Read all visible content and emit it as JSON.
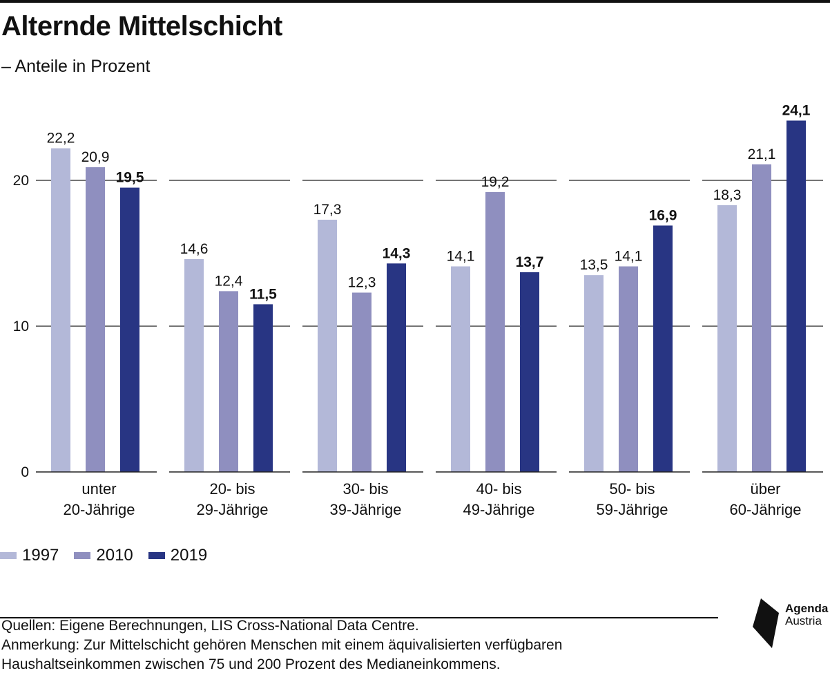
{
  "title": "Alternde Mittelschicht",
  "subtitle": "– Anteile in Prozent",
  "legend": [
    {
      "label": "1997",
      "color": "#b3b8d8"
    },
    {
      "label": "2010",
      "color": "#8f8fbf"
    },
    {
      "label": "2019",
      "color": "#283583"
    }
  ],
  "chart_data": {
    "type": "bar",
    "categories": [
      [
        "unter",
        "20-Jährige"
      ],
      [
        "20- bis",
        "29-Jährige"
      ],
      [
        "30- bis",
        "39-Jährige"
      ],
      [
        "40- bis",
        "49-Jährige"
      ],
      [
        "50- bis",
        "59-Jährige"
      ],
      [
        "über",
        "60-Jährige"
      ]
    ],
    "series": [
      {
        "name": "1997",
        "color": "#b3b8d8",
        "values": [
          22.2,
          14.6,
          17.3,
          14.1,
          13.5,
          18.3
        ],
        "labels": [
          "22,2",
          "14,6",
          "17,3",
          "14,1",
          "13,5",
          "18,3"
        ]
      },
      {
        "name": "2010",
        "color": "#8f8fbf",
        "values": [
          20.9,
          12.4,
          12.3,
          19.2,
          14.1,
          21.1
        ],
        "labels": [
          "20,9",
          "12,4",
          "12,3",
          "19,2",
          "14,1",
          "21,1"
        ]
      },
      {
        "name": "2019",
        "color": "#283583",
        "values": [
          19.5,
          11.5,
          14.3,
          13.7,
          16.9,
          24.1
        ],
        "labels": [
          "19,5",
          "11,5",
          "14,3",
          "13,7",
          "16,9",
          "24,1"
        ],
        "bold_labels": true
      }
    ],
    "yticks": [
      "0",
      "10",
      "20"
    ],
    "ylim": [
      0,
      24.1
    ],
    "grid": true
  },
  "footnote": {
    "sources": "Quellen: Eigene Berechnungen, LIS Cross-National Data Centre.",
    "note_line1": "Anmerkung: Zur Mittelschicht gehören Menschen mit einem äquivalisierten verfügbaren",
    "note_line2": "Haushaltseinkommen zwischen 75 und 200 Prozent des Medianeinkommens."
  },
  "logo": {
    "line1": "Agenda",
    "line2": "Austria"
  }
}
